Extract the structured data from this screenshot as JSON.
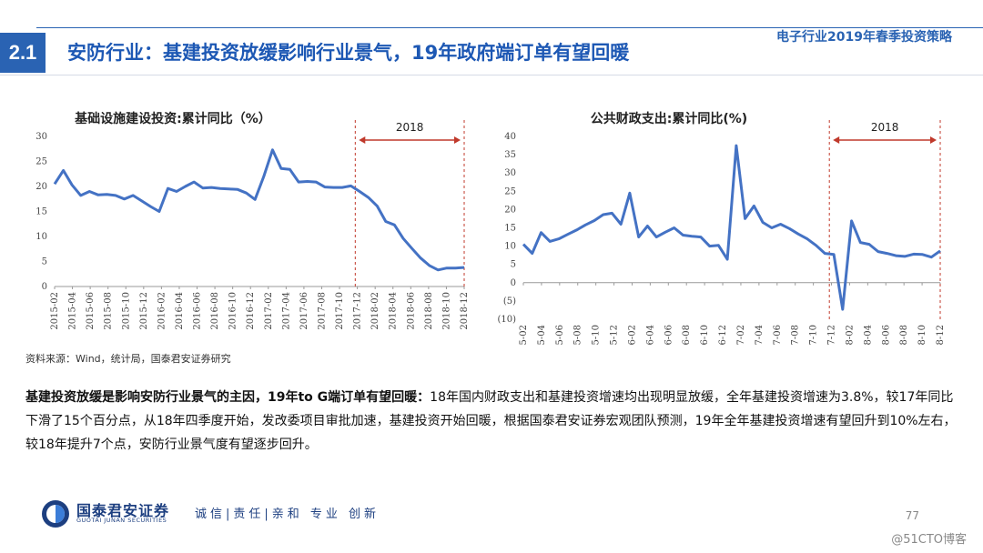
{
  "header": {
    "section_number": "2.1",
    "title": "安防行业：基建投资放缓影响行业景气，19年政府端订单有望回暖",
    "report_name": "电子行业2019年春季投资策略"
  },
  "chart_data": [
    {
      "type": "line",
      "title": "基础设施建设投资:累计同比（%）",
      "xlabel": "",
      "ylabel": "",
      "ylim": [
        0,
        30
      ],
      "yticks": [
        "0",
        "5",
        "10",
        "15",
        "20",
        "25",
        "30"
      ],
      "xticks": [
        "2015-02",
        "2015-04",
        "2015-06",
        "2015-08",
        "2015-10",
        "2015-12",
        "2016-02",
        "2016-04",
        "2016-06",
        "2016-08",
        "2016-10",
        "2016-12",
        "2017-02",
        "2017-04",
        "2017-06",
        "2017-08",
        "2017-10",
        "2017-12",
        "2018-02",
        "2018-04",
        "2018-06",
        "2018-08",
        "2018-10",
        "2018-12"
      ],
      "series": [
        {
          "values": [
            20.5,
            23.2,
            20.3,
            18.2,
            19.0,
            18.3,
            18.4,
            18.2,
            17.5,
            18.2,
            17.1,
            16.0,
            15.0,
            19.6,
            19.0,
            20.0,
            20.9,
            19.7,
            19.8,
            19.6,
            19.5,
            19.4,
            18.7,
            17.4,
            22.0,
            27.3,
            23.6,
            23.4,
            20.9,
            21.0,
            20.9,
            19.9,
            19.8,
            19.8,
            20.1,
            19.0,
            17.8,
            16.1,
            13.0,
            12.3,
            9.6,
            7.6,
            5.7,
            4.2,
            3.3,
            3.7,
            3.7,
            3.8
          ]
        }
      ],
      "annotation": {
        "label": "2018"
      },
      "color": "#4472C4"
    },
    {
      "type": "line",
      "title": "公共财政支出:累计同比(%)",
      "xlabel": "",
      "ylabel": "",
      "ylim": [
        -10,
        40
      ],
      "yticks": [
        "(10)",
        "(5)",
        "0",
        "5",
        "10",
        "15",
        "20",
        "25",
        "30",
        "35",
        "40"
      ],
      "xticks": [
        "2015-02",
        "2015-04",
        "2015-06",
        "2015-08",
        "2015-10",
        "2015-12",
        "2016-02",
        "2016-04",
        "2016-06",
        "2016-08",
        "2016-10",
        "2016-12",
        "2017-02",
        "2017-04",
        "2017-06",
        "2017-08",
        "2017-10",
        "2017-12",
        "2018-02",
        "2018-04",
        "2018-06",
        "2018-08",
        "2018-10",
        "2018-12"
      ],
      "series": [
        {
          "values": [
            10.5,
            8.0,
            13.7,
            11.3,
            12.0,
            13.2,
            14.4,
            15.8,
            17.0,
            18.6,
            19.0,
            16.0,
            24.5,
            12.5,
            15.5,
            12.5,
            13.8,
            15.0,
            13.0,
            12.7,
            12.5,
            10.0,
            10.2,
            6.4,
            37.5,
            17.5,
            21.0,
            16.5,
            15.0,
            16.0,
            14.8,
            13.3,
            12.0,
            10.2,
            8.0,
            7.7,
            -7.3,
            16.9,
            11.0,
            10.5,
            8.5,
            8.0,
            7.4,
            7.2,
            7.8,
            7.7,
            7.0,
            8.7
          ]
        }
      ],
      "annotation": {
        "label": "2018"
      },
      "color": "#4472C4"
    }
  ],
  "source": "资料来源：Wind，统计局，国泰君安证券研究",
  "summary": {
    "lead": "基建投资放缓是影响安防行业景气的主因，19年to G端订单有望回暖：",
    "body": "18年国内财政支出和基建投资增速均出现明显放缓，全年基建投资增速为3.8%，较17年同比下滑了15个百分点，从18年四季度开始，发改委项目审批加速，基建投资开始回暖，根据国泰君安证券宏观团队预测，19年全年基建投资增速有望回升到10%左右，较18年提升7个点，安防行业景气度有望逐步回升。"
  },
  "footer": {
    "company_cn": "国泰君安证券",
    "company_en": "GUOTAI JUNAN SECURITIES",
    "motto": "诚信|责任|亲和 专业 创新",
    "page": "77",
    "watermark": "@51CTO博客"
  }
}
